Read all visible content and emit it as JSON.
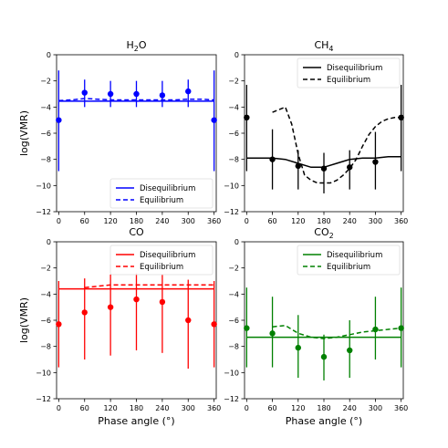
{
  "chart_data": [
    {
      "type": "line",
      "title": "H2O",
      "title_sub": "2",
      "title_tail": "O",
      "title_head": "H",
      "color": "#0000ff",
      "xlabel": "",
      "ylabel": "log(VMR)",
      "xlim": [
        -5,
        365
      ],
      "ylim": [
        -12,
        0
      ],
      "xticks": [
        0,
        60,
        120,
        180,
        240,
        300,
        360
      ],
      "yticks": [
        0,
        -2,
        -4,
        -6,
        -8,
        -10,
        -12
      ],
      "legend_position": "lower-right",
      "series": [
        {
          "name": "Disequilibrium",
          "style": "solid",
          "x": [
            0,
            60,
            120,
            180,
            240,
            300,
            360
          ],
          "y": [
            -3.55,
            -3.55,
            -3.55,
            -3.55,
            -3.55,
            -3.55,
            -3.55
          ]
        },
        {
          "name": "Equilibrium",
          "style": "dashed",
          "x": [
            0,
            30,
            60,
            90,
            120,
            150,
            180,
            210,
            240,
            270,
            300,
            330,
            360
          ],
          "y": [
            -3.5,
            -3.45,
            -3.35,
            -3.4,
            -3.45,
            -3.45,
            -3.45,
            -3.45,
            -3.45,
            -3.45,
            -3.4,
            -3.4,
            -3.45
          ]
        }
      ],
      "points": {
        "x": [
          0,
          60,
          120,
          180,
          240,
          300,
          360
        ],
        "y": [
          -5.0,
          -2.9,
          -3.0,
          -3.0,
          -3.1,
          -2.8,
          -5.0
        ],
        "err_low": [
          -8.9,
          -4.0,
          -4.0,
          -4.0,
          -4.0,
          -4.0,
          -8.9
        ],
        "err_high": [
          -1.2,
          -1.9,
          -2.0,
          -2.0,
          -2.0,
          -1.9,
          -1.2
        ]
      }
    },
    {
      "type": "line",
      "title": "CH4",
      "title_head": "CH",
      "title_sub": "4",
      "title_tail": "",
      "color": "#000000",
      "xlabel": "",
      "ylabel": "",
      "xlim": [
        -5,
        365
      ],
      "ylim": [
        -12,
        0
      ],
      "xticks": [
        0,
        60,
        120,
        180,
        240,
        300,
        360
      ],
      "yticks": [
        0,
        -2,
        -4,
        -6,
        -8,
        -10,
        -12
      ],
      "legend_position": "upper-right",
      "series": [
        {
          "name": "Disequilibrium",
          "style": "solid",
          "x": [
            0,
            30,
            60,
            90,
            120,
            150,
            180,
            210,
            240,
            270,
            300,
            330,
            360
          ],
          "y": [
            -7.9,
            -7.9,
            -7.9,
            -8.0,
            -8.3,
            -8.6,
            -8.6,
            -8.3,
            -8.0,
            -7.9,
            -7.9,
            -7.8,
            -7.8
          ]
        },
        {
          "name": "Equilibrium",
          "style": "dashed",
          "x": [
            60,
            75,
            90,
            105,
            120,
            135,
            150,
            165,
            180,
            195,
            210,
            225,
            240,
            255,
            270,
            285,
            300,
            315,
            330,
            345,
            360
          ],
          "y": [
            -4.4,
            -4.2,
            -4.0,
            -5.3,
            -7.6,
            -9.2,
            -9.6,
            -9.8,
            -9.8,
            -9.8,
            -9.6,
            -9.2,
            -8.7,
            -8.0,
            -7.0,
            -6.1,
            -5.5,
            -5.1,
            -4.9,
            -4.8,
            -4.8
          ]
        }
      ],
      "points": {
        "x": [
          0,
          60,
          120,
          180,
          240,
          300,
          360
        ],
        "y": [
          -4.8,
          -8.0,
          -8.5,
          -8.7,
          -8.6,
          -8.2,
          -4.8
        ],
        "err_low": [
          -8.9,
          -10.3,
          -10.3,
          -10.6,
          -10.3,
          -10.3,
          -8.9
        ],
        "err_high": [
          -2.3,
          -5.7,
          -7.3,
          -7.5,
          -7.3,
          -5.9,
          -2.3
        ]
      }
    },
    {
      "type": "line",
      "title": "CO",
      "title_head": "CO",
      "title_sub": "",
      "title_tail": "",
      "color": "#ff0000",
      "xlabel": "Phase angle (°)",
      "ylabel": "log(VMR)",
      "xlim": [
        -5,
        365
      ],
      "ylim": [
        -12,
        0
      ],
      "xticks": [
        0,
        60,
        120,
        180,
        240,
        300,
        360
      ],
      "yticks": [
        0,
        -2,
        -4,
        -6,
        -8,
        -10,
        -12
      ],
      "legend_position": "upper-right",
      "series": [
        {
          "name": "Disequilibrium",
          "style": "solid",
          "x": [
            0,
            60,
            120,
            180,
            240,
            300,
            360
          ],
          "y": [
            -3.6,
            -3.6,
            -3.6,
            -3.6,
            -3.6,
            -3.6,
            -3.6
          ]
        },
        {
          "name": "Equilibrium",
          "style": "dashed",
          "x": [
            60,
            90,
            120,
            150,
            180,
            210,
            240,
            270,
            300,
            330,
            360
          ],
          "y": [
            -3.5,
            -3.4,
            -3.3,
            -3.3,
            -3.3,
            -3.3,
            -3.3,
            -3.3,
            -3.3,
            -3.3,
            -3.3
          ]
        }
      ],
      "points": {
        "x": [
          0,
          60,
          120,
          180,
          240,
          300,
          360
        ],
        "y": [
          -6.3,
          -5.4,
          -5.0,
          -4.4,
          -4.6,
          -6.0,
          -6.3
        ],
        "err_low": [
          -9.6,
          -9.0,
          -8.7,
          -8.3,
          -8.5,
          -9.7,
          -9.6
        ],
        "err_high": [
          -3.0,
          -2.8,
          -2.5,
          -2.4,
          -2.5,
          -2.9,
          -3.0
        ]
      }
    },
    {
      "type": "line",
      "title": "CO2",
      "title_head": "CO",
      "title_sub": "2",
      "title_tail": "",
      "color": "#008000",
      "xlabel": "Phase angle (°)",
      "ylabel": "",
      "xlim": [
        -5,
        365
      ],
      "ylim": [
        -12,
        0
      ],
      "xticks": [
        0,
        60,
        120,
        180,
        240,
        300,
        360
      ],
      "yticks": [
        0,
        -2,
        -4,
        -6,
        -8,
        -10,
        -12
      ],
      "legend_position": "upper-right",
      "series": [
        {
          "name": "Disequilibrium",
          "style": "solid",
          "x": [
            0,
            60,
            120,
            180,
            240,
            300,
            360
          ],
          "y": [
            -7.3,
            -7.3,
            -7.3,
            -7.3,
            -7.3,
            -7.3,
            -7.3
          ]
        },
        {
          "name": "Equilibrium",
          "style": "dashed",
          "x": [
            60,
            90,
            120,
            150,
            180,
            210,
            240,
            270,
            300,
            330,
            360
          ],
          "y": [
            -6.5,
            -6.4,
            -7.0,
            -7.3,
            -7.4,
            -7.3,
            -7.1,
            -6.9,
            -6.8,
            -6.7,
            -6.6
          ]
        }
      ],
      "points": {
        "x": [
          0,
          60,
          120,
          180,
          240,
          300,
          360
        ],
        "y": [
          -6.6,
          -7.0,
          -8.1,
          -8.8,
          -8.3,
          -6.7,
          -6.6
        ],
        "err_low": [
          -9.6,
          -9.6,
          -10.4,
          -10.6,
          -10.4,
          -9.0,
          -9.6
        ],
        "err_high": [
          -3.5,
          -4.2,
          -5.6,
          -7.1,
          -6.0,
          -4.2,
          -3.5
        ]
      }
    }
  ]
}
